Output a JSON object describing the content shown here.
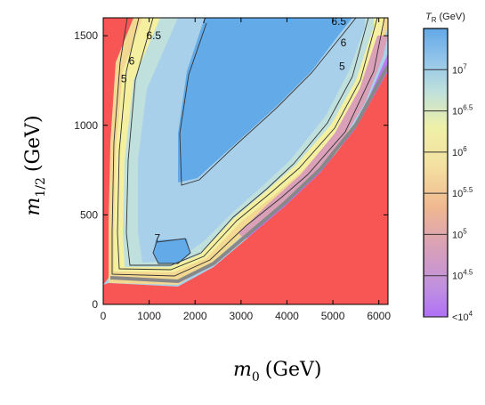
{
  "chart_data": {
    "type": "heatmap",
    "xlabel_main": "m",
    "xlabel_sub": "0",
    "xlabel_unit": "(GeV)",
    "ylabel_main": "m",
    "ylabel_sub": "1/2",
    "ylabel_unit": "(GeV)",
    "xlim": [
      0,
      6200
    ],
    "ylim": [
      0,
      1600
    ],
    "x_ticks": [
      0,
      1000,
      2000,
      3000,
      4000,
      5000,
      6000
    ],
    "x_tick_labels": [
      "0",
      "1000",
      "2000",
      "3000",
      "4000",
      "5000",
      "6000"
    ],
    "y_ticks": [
      0,
      500,
      1000,
      1500
    ],
    "y_tick_labels": [
      "0",
      "500",
      "1000",
      "1500"
    ],
    "contours": [
      {
        "label": "5",
        "x": 450,
        "y": 1240
      },
      {
        "label": "6",
        "x": 620,
        "y": 1340
      },
      {
        "label": "6.5",
        "x": 1100,
        "y": 1480
      },
      {
        "label": "7",
        "x": 2200,
        "y": 1570
      },
      {
        "label": "6.5",
        "x": 5130,
        "y": 1560
      },
      {
        "label": "6",
        "x": 5230,
        "y": 1440
      },
      {
        "label": "5",
        "x": 5200,
        "y": 1310
      },
      {
        "label": "7",
        "x": 1180,
        "y": 350
      }
    ],
    "colorbar": {
      "title_main": "T",
      "title_sub": "R",
      "title_unit": "(GeV)",
      "ticks": [
        {
          "base": "10",
          "exp": "7",
          "log": 7
        },
        {
          "base": "10",
          "exp": "6.5",
          "log": 6.5
        },
        {
          "base": "10",
          "exp": "6",
          "log": 6
        },
        {
          "base": "10",
          "exp": "5.5",
          "log": 5.5
        },
        {
          "base": "10",
          "exp": "5",
          "log": 5
        },
        {
          "base": "10",
          "exp": "4.5",
          "log": 4.5
        },
        {
          "base": "<10",
          "exp": "4",
          "log": 4
        }
      ],
      "range": [
        4,
        7.5
      ]
    },
    "excluded_color": "#f85555",
    "colors": {
      "blue": "#62aae8",
      "lightblue": "#a8d0ea",
      "cyan": "#bfe0dc",
      "yellow": "#f4f0a0",
      "orange": "#f2c088",
      "pink": "#d9a0b8",
      "violet": "#b878f0",
      "grey": "#888888"
    }
  }
}
